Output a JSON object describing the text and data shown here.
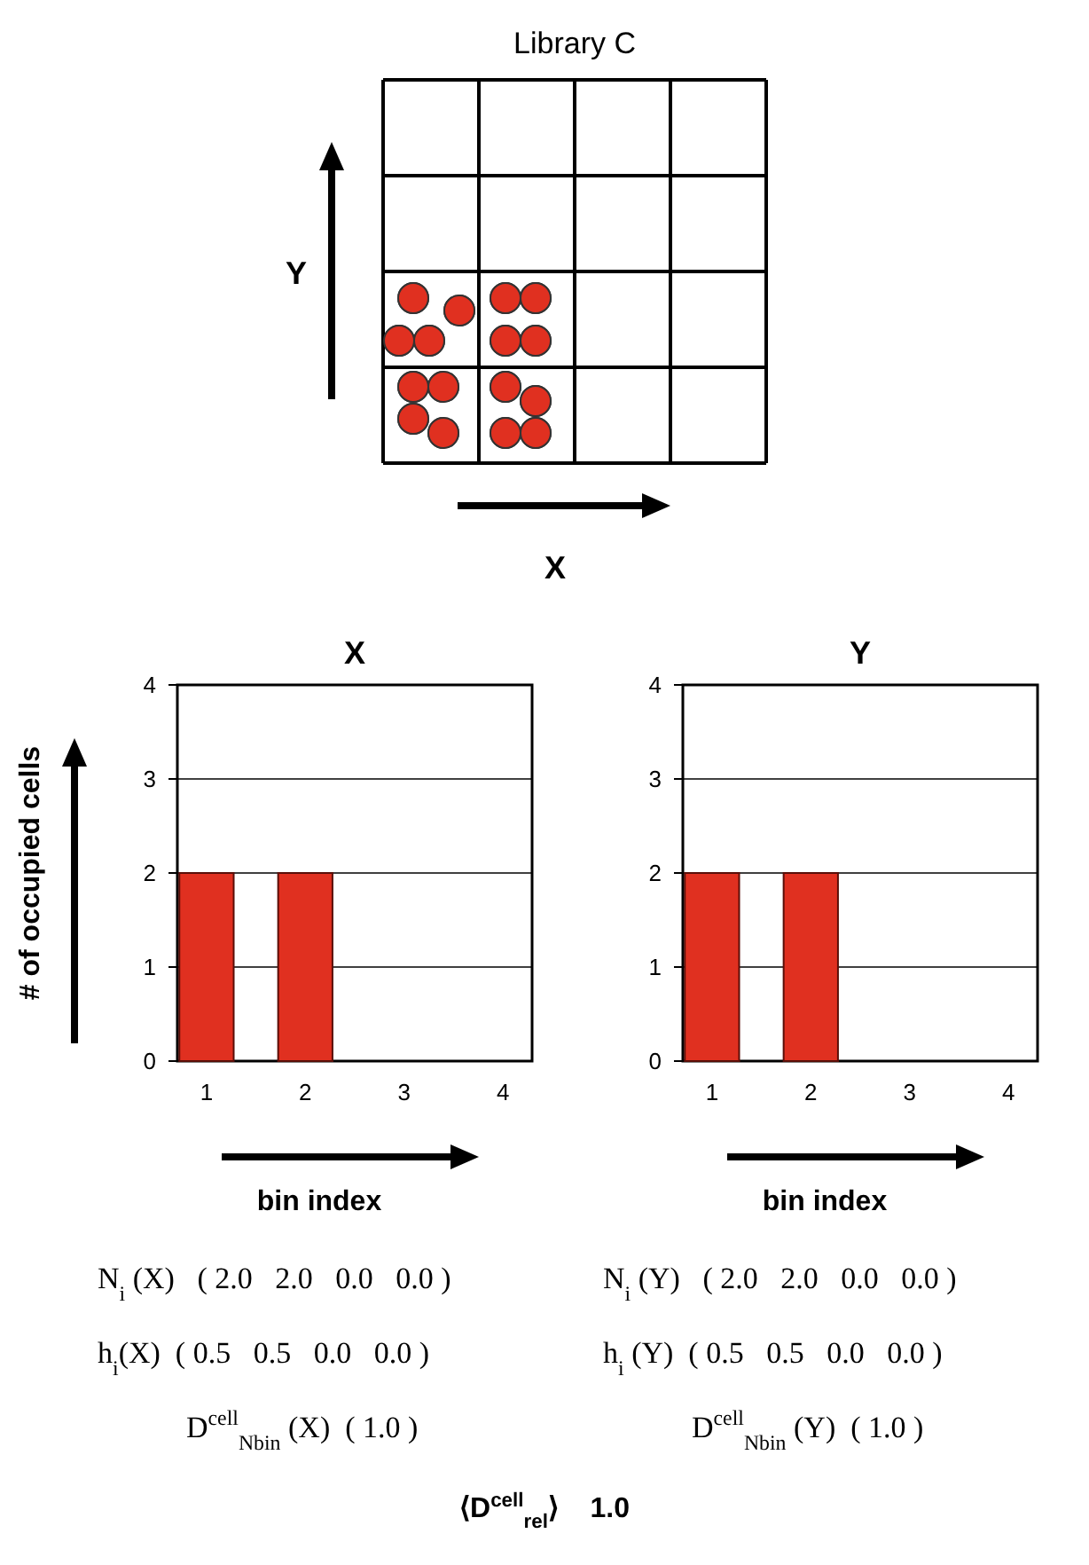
{
  "chart_data": [
    {
      "type": "other",
      "title": "Library C",
      "xlabel": "X",
      "ylabel": "Y"
    },
    {
      "type": "bar",
      "title": "X",
      "categories": [
        "1",
        "2",
        "3",
        "4"
      ],
      "values": [
        2,
        2,
        0,
        0
      ],
      "color": "#e03020",
      "ylim": [
        0,
        4
      ],
      "yticks": [
        0,
        1,
        2,
        3,
        4
      ],
      "grid": "y",
      "xlabel": "bin index",
      "ylabel": "# of occupied cells",
      "annotations": [
        "N$_{i}$ (X)   ( 2.0   2.0   0.0   0.0 )",
        "h$_{i}$(X)  ( 0.5   0.5   0.0   0.0 )",
        "D$^{cell}$$_{Nbin}$ (X)  ( 1.0 )"
      ]
    },
    {
      "type": "bar",
      "title": "Y",
      "categories": [
        "1",
        "2",
        "3",
        "4"
      ],
      "values": [
        2,
        2,
        0,
        0
      ],
      "color": "#e03020",
      "ylim": [
        0,
        4
      ],
      "yticks": [
        0,
        1,
        2,
        3,
        4
      ],
      "grid": "y",
      "xlabel": "bin index",
      "annotations": [
        "N$_{i}$ (Y)   ( 2.0   2.0   0.0   0.0 )",
        "h$_{i}$ (Y)  ( 0.5   0.5   0.0   0.0 )",
        "D$^{cell}$$_{Nbin}$ (Y)  ( 1.0 )"
      ]
    },
    {
      "type": "other",
      "annotations": [
        "⟨D$^{cell}$$_{rel}$⟩    1.0"
      ]
    }
  ]
}
